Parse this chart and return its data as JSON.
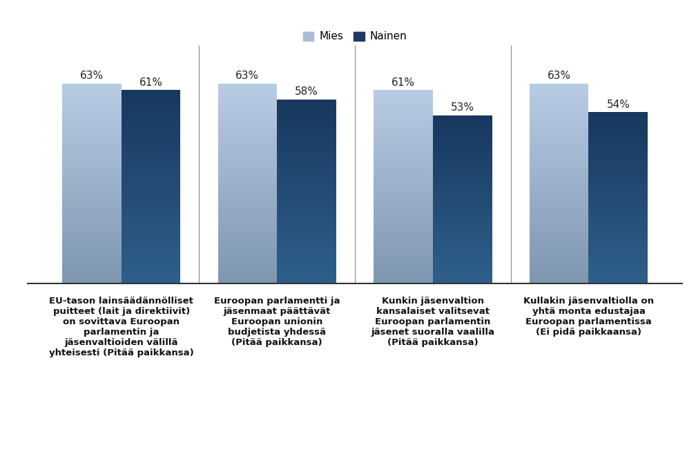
{
  "categories": [
    "EU-tason lainsäädännölliset\npuitteet (lait ja direktiivit)\non sovittava Euroopan\nparlamentin ja\njäsenvaltioiden välillä\nyhteisesti (Pitää paikkansa)",
    "Euroopan parlamentti ja\njäsenmaat päättävät\nEuroopan unionin\nbudjetista yhdessä\n(Pitää paikkansa)",
    "Kunkin jäsenvaltion\nkansalaiset valitsevat\nEuroopan parlamentin\njäsenet suoralla vaalilla\n(Pitää paikkansa)",
    "Kullakin jäsenvaltiolla on\nyhtä monta edustajaa\nEuroopan parlamentissa\n(Ei pidä paikkaansa)"
  ],
  "mies_values": [
    63,
    63,
    61,
    63
  ],
  "nainen_values": [
    61,
    58,
    53,
    54
  ],
  "mies_color_top": "#b8cce4",
  "mies_color_bottom": "#7f96b0",
  "nainen_color_top": "#17375e",
  "nainen_color_bottom": "#2e5f8a",
  "legend_mies_color": "#a8bcd4",
  "legend_nainen_color": "#1f3864",
  "legend_labels": [
    "Mies",
    "Nainen"
  ],
  "bar_width": 0.38,
  "ylim": [
    0,
    75
  ],
  "background_color": "#ffffff",
  "tick_fontsize": 9.5,
  "legend_fontsize": 11,
  "value_fontsize": 11
}
